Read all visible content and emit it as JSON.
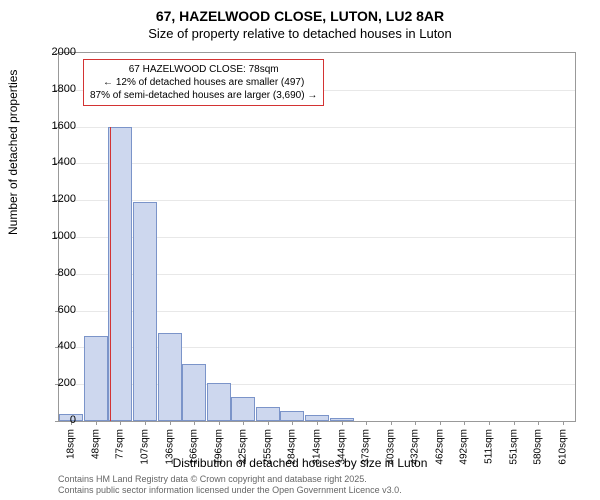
{
  "header": {
    "title": "67, HAZELWOOD CLOSE, LUTON, LU2 8AR",
    "subtitle": "Size of property relative to detached houses in Luton"
  },
  "chart": {
    "type": "histogram",
    "yaxis_label": "Number of detached properties",
    "xaxis_label": "Distribution of detached houses by size in Luton",
    "ylim_max": 2000,
    "ytick_step": 200,
    "yticks": [
      0,
      200,
      400,
      600,
      800,
      1000,
      1200,
      1400,
      1600,
      1800,
      2000
    ],
    "bar_fill": "#cdd7ee",
    "bar_border": "#7b94c9",
    "grid_color": "#e8e8e8",
    "axis_color": "#999999",
    "background": "#ffffff",
    "marker_color": "#d33333",
    "bars": [
      {
        "label": "18sqm",
        "value": 40
      },
      {
        "label": "48sqm",
        "value": 460
      },
      {
        "label": "77sqm",
        "value": 1600
      },
      {
        "label": "107sqm",
        "value": 1190
      },
      {
        "label": "136sqm",
        "value": 480
      },
      {
        "label": "166sqm",
        "value": 310
      },
      {
        "label": "196sqm",
        "value": 205
      },
      {
        "label": "225sqm",
        "value": 130
      },
      {
        "label": "255sqm",
        "value": 75
      },
      {
        "label": "284sqm",
        "value": 55
      },
      {
        "label": "314sqm",
        "value": 30
      },
      {
        "label": "344sqm",
        "value": 15
      },
      {
        "label": "373sqm",
        "value": 0
      },
      {
        "label": "403sqm",
        "value": 0
      },
      {
        "label": "432sqm",
        "value": 0
      },
      {
        "label": "462sqm",
        "value": 0
      },
      {
        "label": "492sqm",
        "value": 0
      },
      {
        "label": "511sqm",
        "value": 0
      },
      {
        "label": "551sqm",
        "value": 0
      },
      {
        "label": "580sqm",
        "value": 0
      },
      {
        "label": "610sqm",
        "value": 0
      }
    ],
    "marker_bar_index": 2,
    "marker_fraction_in_bar": 0.05,
    "annotation": {
      "line1": "67 HAZELWOOD CLOSE: 78sqm",
      "line2": "← 12% of detached houses are smaller (497)",
      "line3": "87% of semi-detached houses are larger (3,690) →"
    }
  },
  "footer": {
    "line1": "Contains HM Land Registry data © Crown copyright and database right 2025.",
    "line2": "Contains public sector information licensed under the Open Government Licence v3.0."
  }
}
